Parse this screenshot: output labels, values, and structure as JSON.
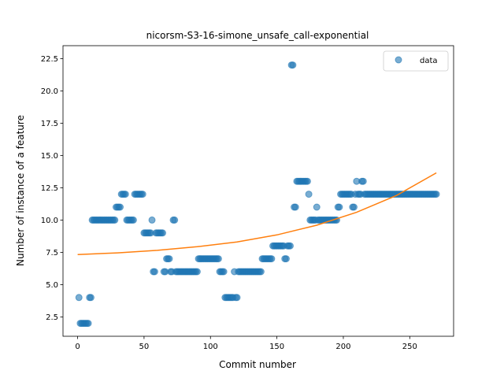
{
  "chart_data": {
    "type": "scatter",
    "title": "nicorsm-S3-16-simone_unsafe_call-exponential",
    "xlabel": "Commit number",
    "ylabel": "Number of instance of a feature",
    "xlim": [
      -11,
      283
    ],
    "ylim": [
      1.0,
      23.5
    ],
    "xticks": [
      0,
      50,
      100,
      150,
      200,
      250
    ],
    "yticks": [
      2.5,
      5.0,
      7.5,
      10.0,
      12.5,
      15.0,
      17.5,
      20.0,
      22.5
    ],
    "grid": false,
    "legend": {
      "position": "top-right",
      "entries": [
        "data"
      ]
    },
    "colors": {
      "data": "#1f77b4",
      "fit": "#ff7f0e"
    },
    "series": [
      {
        "name": "data",
        "kind": "scatter",
        "points": [
          [
            1,
            4
          ],
          [
            2,
            2
          ],
          [
            3,
            2
          ],
          [
            4,
            2
          ],
          [
            5,
            2
          ],
          [
            6,
            2
          ],
          [
            7,
            2
          ],
          [
            8,
            2
          ],
          [
            9,
            4
          ],
          [
            10,
            4
          ],
          [
            11,
            10
          ],
          [
            12,
            10
          ],
          [
            13,
            10
          ],
          [
            14,
            10
          ],
          [
            15,
            10
          ],
          [
            16,
            10
          ],
          [
            17,
            10
          ],
          [
            18,
            10
          ],
          [
            19,
            10
          ],
          [
            20,
            10
          ],
          [
            21,
            10
          ],
          [
            22,
            10
          ],
          [
            23,
            10
          ],
          [
            24,
            10
          ],
          [
            25,
            10
          ],
          [
            26,
            10
          ],
          [
            27,
            10
          ],
          [
            28,
            10
          ],
          [
            29,
            11
          ],
          [
            30,
            11
          ],
          [
            31,
            11
          ],
          [
            32,
            11
          ],
          [
            33,
            12
          ],
          [
            34,
            12
          ],
          [
            35,
            12
          ],
          [
            36,
            12
          ],
          [
            37,
            10
          ],
          [
            38,
            10
          ],
          [
            39,
            10
          ],
          [
            40,
            10
          ],
          [
            41,
            10
          ],
          [
            42,
            10
          ],
          [
            43,
            12
          ],
          [
            44,
            12
          ],
          [
            45,
            12
          ],
          [
            46,
            12
          ],
          [
            47,
            12
          ],
          [
            48,
            12
          ],
          [
            49,
            12
          ],
          [
            50,
            9
          ],
          [
            51,
            9
          ],
          [
            52,
            9
          ],
          [
            53,
            9
          ],
          [
            54,
            9
          ],
          [
            55,
            9
          ],
          [
            56,
            10
          ],
          [
            57,
            6
          ],
          [
            58,
            6
          ],
          [
            59,
            9
          ],
          [
            60,
            9
          ],
          [
            61,
            9
          ],
          [
            62,
            9
          ],
          [
            63,
            9
          ],
          [
            64,
            9
          ],
          [
            65,
            6
          ],
          [
            66,
            6
          ],
          [
            67,
            7
          ],
          [
            68,
            7
          ],
          [
            69,
            7
          ],
          [
            70,
            6
          ],
          [
            71,
            6
          ],
          [
            72,
            10
          ],
          [
            73,
            10
          ],
          [
            74,
            6
          ],
          [
            75,
            6
          ],
          [
            76,
            6
          ],
          [
            77,
            6
          ],
          [
            78,
            6
          ],
          [
            79,
            6
          ],
          [
            80,
            6
          ],
          [
            81,
            6
          ],
          [
            82,
            6
          ],
          [
            83,
            6
          ],
          [
            84,
            6
          ],
          [
            85,
            6
          ],
          [
            86,
            6
          ],
          [
            87,
            6
          ],
          [
            88,
            6
          ],
          [
            89,
            6
          ],
          [
            90,
            6
          ],
          [
            91,
            7
          ],
          [
            92,
            7
          ],
          [
            93,
            7
          ],
          [
            94,
            7
          ],
          [
            95,
            7
          ],
          [
            96,
            7
          ],
          [
            97,
            7
          ],
          [
            98,
            7
          ],
          [
            99,
            7
          ],
          [
            100,
            7
          ],
          [
            101,
            7
          ],
          [
            102,
            7
          ],
          [
            103,
            7
          ],
          [
            104,
            7
          ],
          [
            105,
            7
          ],
          [
            106,
            7
          ],
          [
            107,
            6
          ],
          [
            108,
            6
          ],
          [
            109,
            6
          ],
          [
            110,
            6
          ],
          [
            111,
            4
          ],
          [
            112,
            4
          ],
          [
            113,
            4
          ],
          [
            114,
            4
          ],
          [
            115,
            4
          ],
          [
            116,
            4
          ],
          [
            117,
            4
          ],
          [
            118,
            6
          ],
          [
            119,
            4
          ],
          [
            120,
            4
          ],
          [
            121,
            6
          ],
          [
            122,
            6
          ],
          [
            123,
            6
          ],
          [
            124,
            6
          ],
          [
            125,
            6
          ],
          [
            126,
            6
          ],
          [
            127,
            6
          ],
          [
            128,
            6
          ],
          [
            129,
            6
          ],
          [
            130,
            6
          ],
          [
            131,
            6
          ],
          [
            132,
            6
          ],
          [
            133,
            6
          ],
          [
            134,
            6
          ],
          [
            135,
            6
          ],
          [
            136,
            6
          ],
          [
            137,
            6
          ],
          [
            138,
            6
          ],
          [
            139,
            7
          ],
          [
            140,
            7
          ],
          [
            141,
            7
          ],
          [
            142,
            7
          ],
          [
            143,
            7
          ],
          [
            144,
            7
          ],
          [
            145,
            7
          ],
          [
            146,
            7
          ],
          [
            147,
            8
          ],
          [
            148,
            8
          ],
          [
            149,
            8
          ],
          [
            150,
            8
          ],
          [
            151,
            8
          ],
          [
            152,
            8
          ],
          [
            153,
            8
          ],
          [
            154,
            8
          ],
          [
            155,
            8
          ],
          [
            156,
            7
          ],
          [
            157,
            7
          ],
          [
            158,
            8
          ],
          [
            159,
            8
          ],
          [
            160,
            8
          ],
          [
            161,
            22
          ],
          [
            162,
            22
          ],
          [
            163,
            11
          ],
          [
            164,
            11
          ],
          [
            165,
            13
          ],
          [
            166,
            13
          ],
          [
            167,
            13
          ],
          [
            168,
            13
          ],
          [
            169,
            13
          ],
          [
            170,
            13
          ],
          [
            171,
            13
          ],
          [
            172,
            13
          ],
          [
            173,
            13
          ],
          [
            174,
            12
          ],
          [
            175,
            10
          ],
          [
            176,
            10
          ],
          [
            177,
            10
          ],
          [
            178,
            10
          ],
          [
            179,
            10
          ],
          [
            180,
            11
          ],
          [
            181,
            10
          ],
          [
            182,
            10
          ],
          [
            183,
            10
          ],
          [
            184,
            10
          ],
          [
            185,
            10
          ],
          [
            186,
            10
          ],
          [
            187,
            10
          ],
          [
            188,
            10
          ],
          [
            189,
            10
          ],
          [
            190,
            10
          ],
          [
            191,
            10
          ],
          [
            192,
            10
          ],
          [
            193,
            10
          ],
          [
            194,
            10
          ],
          [
            195,
            10
          ],
          [
            196,
            11
          ],
          [
            197,
            11
          ],
          [
            198,
            12
          ],
          [
            199,
            12
          ],
          [
            200,
            12
          ],
          [
            201,
            12
          ],
          [
            202,
            12
          ],
          [
            203,
            12
          ],
          [
            204,
            12
          ],
          [
            205,
            12
          ],
          [
            206,
            12
          ],
          [
            207,
            11
          ],
          [
            208,
            11
          ],
          [
            209,
            12
          ],
          [
            210,
            13
          ],
          [
            211,
            12
          ],
          [
            212,
            12
          ],
          [
            213,
            12
          ],
          [
            214,
            13
          ],
          [
            215,
            13
          ],
          [
            216,
            12
          ],
          [
            217,
            12
          ],
          [
            218,
            12
          ],
          [
            219,
            12
          ],
          [
            220,
            12
          ],
          [
            221,
            12
          ],
          [
            222,
            12
          ],
          [
            223,
            12
          ],
          [
            224,
            12
          ],
          [
            225,
            12
          ],
          [
            226,
            12
          ],
          [
            227,
            12
          ],
          [
            228,
            12
          ],
          [
            229,
            12
          ],
          [
            230,
            12
          ],
          [
            231,
            12
          ],
          [
            232,
            12
          ],
          [
            233,
            12
          ],
          [
            234,
            12
          ],
          [
            235,
            12
          ],
          [
            236,
            12
          ],
          [
            237,
            12
          ],
          [
            238,
            12
          ],
          [
            239,
            12
          ],
          [
            240,
            12
          ],
          [
            241,
            12
          ],
          [
            242,
            12
          ],
          [
            243,
            12
          ],
          [
            244,
            12
          ],
          [
            245,
            12
          ],
          [
            246,
            12
          ],
          [
            247,
            12
          ],
          [
            248,
            12
          ],
          [
            249,
            12
          ],
          [
            250,
            12
          ],
          [
            251,
            12
          ],
          [
            252,
            12
          ],
          [
            253,
            12
          ],
          [
            254,
            12
          ],
          [
            255,
            12
          ],
          [
            256,
            12
          ],
          [
            257,
            12
          ],
          [
            258,
            12
          ],
          [
            259,
            12
          ],
          [
            260,
            12
          ],
          [
            261,
            12
          ],
          [
            262,
            12
          ],
          [
            263,
            12
          ],
          [
            264,
            12
          ],
          [
            265,
            12
          ],
          [
            266,
            12
          ],
          [
            267,
            12
          ],
          [
            268,
            12
          ],
          [
            269,
            12
          ],
          [
            270,
            12
          ]
        ]
      },
      {
        "kind": "line",
        "points": [
          [
            0,
            7.33
          ],
          [
            30,
            7.46
          ],
          [
            60,
            7.65
          ],
          [
            90,
            7.93
          ],
          [
            120,
            8.3
          ],
          [
            150,
            8.85
          ],
          [
            180,
            9.6
          ],
          [
            210,
            10.6
          ],
          [
            240,
            11.9
          ],
          [
            270,
            13.65
          ]
        ]
      }
    ]
  }
}
